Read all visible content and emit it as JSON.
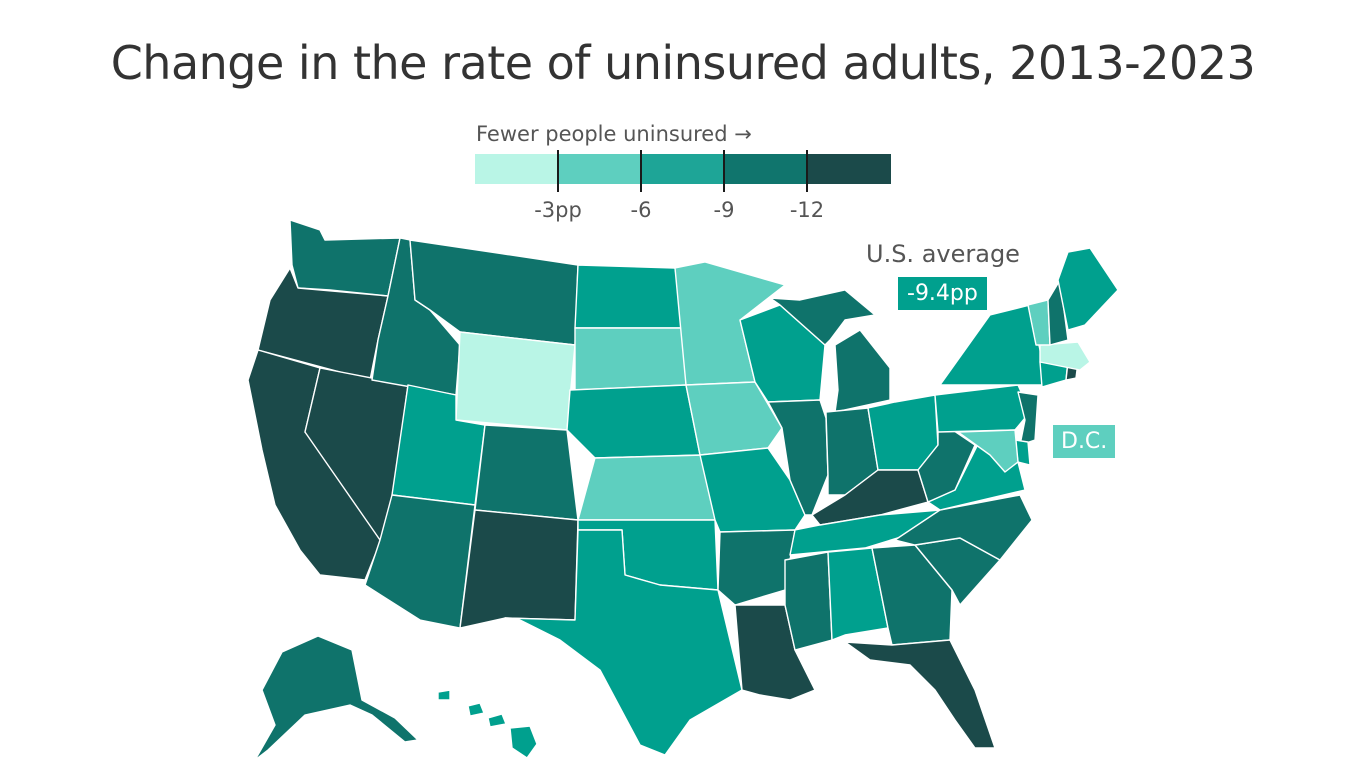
{
  "title": "Change in the rate of uninsured adults, 2013-2023",
  "legend": {
    "title": "Fewer people uninsured →",
    "colors": [
      "#b9f5e6",
      "#5ecfbf",
      "#1ea597",
      "#10756d",
      "#1b4a4a"
    ],
    "ticks": [
      "-3pp",
      "-6",
      "-9",
      "-12"
    ]
  },
  "average": {
    "label": "U.S. average",
    "value": "-9.4pp",
    "color": "#00a08e"
  },
  "dc": {
    "label": "D.C.",
    "color": "#5ecfbf"
  },
  "chart_data": {
    "type": "choropleth",
    "unit": "pp",
    "class_colors": [
      "#b9f5e6",
      "#5ecfbf",
      "#00a08e",
      "#0f736b",
      "#1b4a4a"
    ],
    "states": [
      {
        "id": "WA",
        "class": 3
      },
      {
        "id": "OR",
        "class": 4
      },
      {
        "id": "CA",
        "class": 4
      },
      {
        "id": "NV",
        "class": 4
      },
      {
        "id": "ID",
        "class": 3
      },
      {
        "id": "MT",
        "class": 3
      },
      {
        "id": "WY",
        "class": 0
      },
      {
        "id": "UT",
        "class": 2
      },
      {
        "id": "AZ",
        "class": 3
      },
      {
        "id": "CO",
        "class": 3
      },
      {
        "id": "NM",
        "class": 4
      },
      {
        "id": "ND",
        "class": 2
      },
      {
        "id": "SD",
        "class": 1
      },
      {
        "id": "NE",
        "class": 2
      },
      {
        "id": "KS",
        "class": 1
      },
      {
        "id": "OK",
        "class": 2
      },
      {
        "id": "TX",
        "class": 2
      },
      {
        "id": "MN",
        "class": 1
      },
      {
        "id": "IA",
        "class": 1
      },
      {
        "id": "MO",
        "class": 2
      },
      {
        "id": "AR",
        "class": 3
      },
      {
        "id": "LA",
        "class": 4
      },
      {
        "id": "WI",
        "class": 2
      },
      {
        "id": "IL",
        "class": 3
      },
      {
        "id": "MI",
        "class": 3
      },
      {
        "id": "IN",
        "class": 3
      },
      {
        "id": "OH",
        "class": 2
      },
      {
        "id": "KY",
        "class": 4
      },
      {
        "id": "TN",
        "class": 2
      },
      {
        "id": "MS",
        "class": 3
      },
      {
        "id": "AL",
        "class": 2
      },
      {
        "id": "GA",
        "class": 3
      },
      {
        "id": "FL",
        "class": 4
      },
      {
        "id": "SC",
        "class": 3
      },
      {
        "id": "NC",
        "class": 3
      },
      {
        "id": "VA",
        "class": 2
      },
      {
        "id": "WV",
        "class": 3
      },
      {
        "id": "PA",
        "class": 2
      },
      {
        "id": "NY",
        "class": 2
      },
      {
        "id": "NJ",
        "class": 3
      },
      {
        "id": "DE",
        "class": 2
      },
      {
        "id": "MD",
        "class": 1
      },
      {
        "id": "CT",
        "class": 2
      },
      {
        "id": "RI",
        "class": 4
      },
      {
        "id": "MA",
        "class": 0
      },
      {
        "id": "VT",
        "class": 1
      },
      {
        "id": "NH",
        "class": 3
      },
      {
        "id": "ME",
        "class": 2
      },
      {
        "id": "AK",
        "class": 3
      },
      {
        "id": "HI",
        "class": 2
      },
      {
        "id": "DC",
        "class": 1
      }
    ]
  }
}
